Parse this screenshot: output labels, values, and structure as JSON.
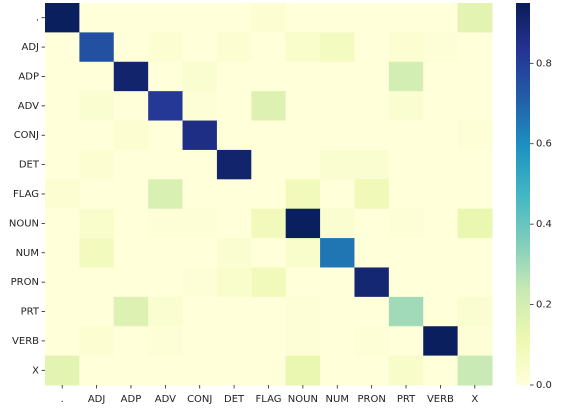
{
  "chart_data": {
    "type": "heatmap",
    "categories": [
      ".",
      "ADJ",
      "ADP",
      "ADV",
      "CONJ",
      "DET",
      "FLAG",
      "NOUN",
      "NUM",
      "PRON",
      "PRT",
      "VERB",
      "X"
    ],
    "matrix": [
      [
        0.94,
        0,
        0,
        0,
        0,
        0,
        0.02,
        0,
        0,
        0,
        0,
        0,
        0.15
      ],
      [
        0,
        0.75,
        0,
        0.02,
        0,
        0.02,
        0,
        0.04,
        0.07,
        0,
        0.02,
        0.01,
        0
      ],
      [
        0,
        0,
        0.91,
        0,
        0.03,
        0,
        0,
        0,
        0,
        0,
        0.2,
        0,
        0
      ],
      [
        0,
        0.03,
        0,
        0.82,
        0.01,
        0,
        0.17,
        0,
        0,
        0,
        0.03,
        0,
        0
      ],
      [
        0,
        0,
        0.02,
        0,
        0.86,
        0,
        0,
        0,
        0,
        0,
        0,
        0,
        0.01
      ],
      [
        0,
        0.02,
        0,
        0,
        0,
        0.91,
        0,
        0,
        0.03,
        0.03,
        0,
        0,
        0
      ],
      [
        0.02,
        0,
        0,
        0.18,
        0,
        0,
        0,
        0.09,
        0,
        0.1,
        0,
        0,
        0
      ],
      [
        0,
        0.04,
        0,
        0.01,
        0.01,
        0,
        0.09,
        0.94,
        0.03,
        0,
        0.01,
        0,
        0.13
      ],
      [
        0,
        0.08,
        0,
        0,
        0,
        0.03,
        0,
        0.04,
        0.66,
        0,
        0,
        0,
        0
      ],
      [
        0,
        0,
        0,
        0,
        0.01,
        0.04,
        0.09,
        0,
        0,
        0.9,
        0,
        0,
        0
      ],
      [
        0,
        0,
        0.17,
        0.03,
        0,
        0,
        0,
        0.01,
        0,
        0,
        0.3,
        0,
        0.03
      ],
      [
        0,
        0.02,
        0,
        0.01,
        0,
        0,
        0,
        0.01,
        0,
        0.01,
        0,
        0.94,
        0.01
      ],
      [
        0.15,
        0,
        0,
        0,
        0,
        0,
        0,
        0.13,
        0,
        0,
        0.05,
        0,
        0.23
      ]
    ],
    "colormap": "YlGnBu",
    "zlim": [
      0,
      0.95
    ],
    "zticks": [
      {
        "value": 0,
        "label": "0.0"
      },
      0.2,
      0.4,
      0.6,
      0.8
    ]
  }
}
